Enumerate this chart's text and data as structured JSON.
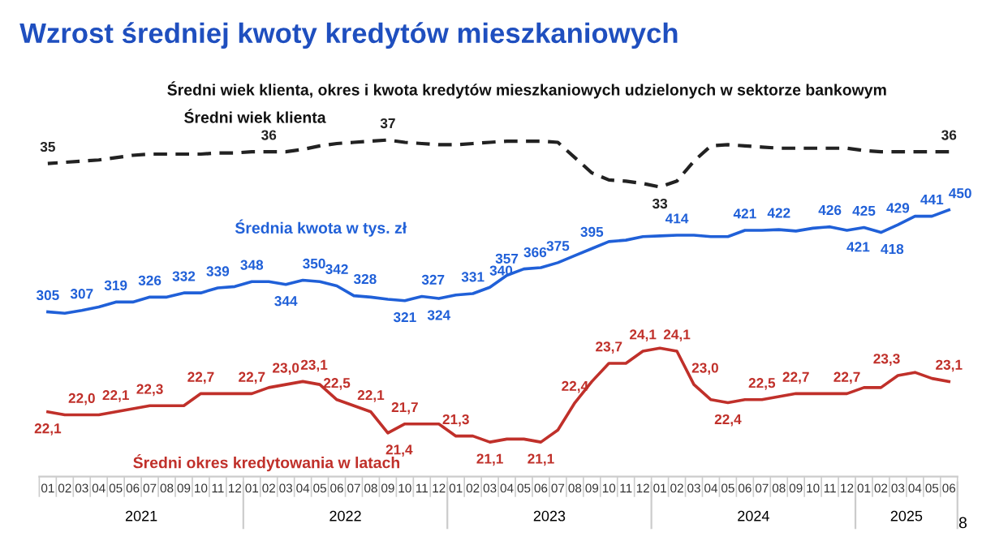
{
  "chart_data": [
    {
      "type": "line",
      "title": "Wzrost średniej kwoty kredytów mieszkaniowych",
      "subtitle": "Średni wiek klienta, okres i kwota kredytów mieszkaniowych udzielonych w sektorze bankowym",
      "categories": [
        "01",
        "02",
        "03",
        "04",
        "05",
        "06",
        "07",
        "08",
        "09",
        "10",
        "11",
        "12",
        "01",
        "02",
        "03",
        "04",
        "05",
        "06",
        "07",
        "08",
        "09",
        "10",
        "11",
        "12",
        "01",
        "02",
        "03",
        "04",
        "05",
        "06",
        "07",
        "08",
        "09",
        "10",
        "11",
        "12",
        "01",
        "02",
        "03",
        "04",
        "05",
        "06",
        "07",
        "08",
        "09",
        "10",
        "11",
        "12",
        "01",
        "02",
        "03",
        "04",
        "05",
        "06"
      ],
      "tick_labels": false,
      "grid": false,
      "legend": false,
      "marker": "none",
      "series": [
        {
          "name": "Średni wiek klienta",
          "color": "#222222",
          "line_style": "dashed",
          "values": [
            35,
            35.1,
            35.2,
            35.3,
            35.5,
            35.7,
            35.8,
            35.8,
            35.8,
            35.8,
            35.9,
            35.9,
            36,
            36,
            36,
            36.2,
            36.5,
            36.7,
            36.8,
            36.9,
            37,
            36.8,
            36.7,
            36.6,
            36.6,
            36.7,
            36.8,
            36.9,
            36.9,
            36.9,
            36.8,
            35.5,
            34.2,
            33.6,
            33.5,
            33.3,
            33,
            33.5,
            35.2,
            36.5,
            36.6,
            36.5,
            36.4,
            36.3,
            36.3,
            36.3,
            36.3,
            36.3,
            36.1,
            36,
            36,
            36,
            36,
            36
          ],
          "value_labels": [
            "35",
            null,
            null,
            null,
            null,
            null,
            null,
            null,
            null,
            null,
            null,
            null,
            null,
            "36",
            null,
            null,
            null,
            null,
            null,
            null,
            "37",
            null,
            null,
            null,
            null,
            null,
            null,
            null,
            null,
            null,
            null,
            null,
            null,
            null,
            null,
            null,
            "33",
            null,
            null,
            null,
            null,
            null,
            null,
            null,
            null,
            null,
            null,
            null,
            null,
            null,
            null,
            null,
            null,
            "36"
          ]
        }
      ]
    },
    {
      "type": "line",
      "categories": [
        "01",
        "02",
        "03",
        "04",
        "05",
        "06",
        "07",
        "08",
        "09",
        "10",
        "11",
        "12",
        "01",
        "02",
        "03",
        "04",
        "05",
        "06",
        "07",
        "08",
        "09",
        "10",
        "11",
        "12",
        "01",
        "02",
        "03",
        "04",
        "05",
        "06",
        "07",
        "08",
        "09",
        "10",
        "11",
        "12",
        "01",
        "02",
        "03",
        "04",
        "05",
        "06",
        "07",
        "08",
        "09",
        "10",
        "11",
        "12",
        "01",
        "02",
        "03",
        "04",
        "05",
        "06"
      ],
      "tick_labels": false,
      "grid": false,
      "legend": false,
      "marker": "none",
      "series": [
        {
          "name": "Średnia kwota w tys. zł",
          "color": "#2060d8",
          "line_style": "solid",
          "values": [
            305,
            303,
            307,
            312,
            319,
            319,
            326,
            326,
            332,
            332,
            339,
            341,
            348,
            348,
            344,
            350,
            348,
            342,
            328,
            326,
            323,
            321,
            327,
            324,
            329,
            331,
            340,
            357,
            366,
            368,
            375,
            385,
            395,
            405,
            407,
            412,
            413,
            414,
            414,
            412,
            412,
            421,
            421,
            422,
            420,
            424,
            426,
            421,
            425,
            418,
            429,
            441,
            441,
            450
          ],
          "value_labels": [
            "305",
            null,
            "307",
            null,
            "319",
            null,
            "326",
            null,
            "332",
            null,
            "339",
            null,
            "348",
            null,
            "344",
            "350",
            null,
            "342",
            "328",
            null,
            null,
            "321",
            "327",
            "324",
            null,
            "331",
            "340",
            "357",
            "366",
            null,
            "375",
            null,
            "395",
            null,
            null,
            null,
            null,
            "414",
            null,
            null,
            null,
            "421",
            null,
            "422",
            null,
            null,
            "426",
            "421",
            "425",
            "418",
            "429",
            null,
            "441",
            "450"
          ]
        }
      ]
    },
    {
      "type": "line",
      "categories": [
        "01",
        "02",
        "03",
        "04",
        "05",
        "06",
        "07",
        "08",
        "09",
        "10",
        "11",
        "12",
        "01",
        "02",
        "03",
        "04",
        "05",
        "06",
        "07",
        "08",
        "09",
        "10",
        "11",
        "12",
        "01",
        "02",
        "03",
        "04",
        "05",
        "06",
        "07",
        "08",
        "09",
        "10",
        "11",
        "12",
        "01",
        "02",
        "03",
        "04",
        "05",
        "06",
        "07",
        "08",
        "09",
        "10",
        "11",
        "12",
        "01",
        "02",
        "03",
        "04",
        "05",
        "06"
      ],
      "annotations": [
        "2021",
        "2022",
        "2023",
        "2024",
        "2025",
        "8"
      ],
      "grid": false,
      "legend": false,
      "marker": "none",
      "series": [
        {
          "name": "Średni okres kredytowania w latach",
          "color": "#c0302a",
          "line_style": "solid",
          "values": [
            22.1,
            22.0,
            22.0,
            22.0,
            22.1,
            22.2,
            22.3,
            22.3,
            22.3,
            22.7,
            22.7,
            22.7,
            22.7,
            22.9,
            23.0,
            23.1,
            23.0,
            22.5,
            22.3,
            22.1,
            21.4,
            21.7,
            21.7,
            21.7,
            21.3,
            21.3,
            21.1,
            21.2,
            21.2,
            21.1,
            21.5,
            22.4,
            23.1,
            23.7,
            23.7,
            24.1,
            24.2,
            24.1,
            23.0,
            22.5,
            22.4,
            22.5,
            22.5,
            22.6,
            22.7,
            22.7,
            22.7,
            22.7,
            22.9,
            22.9,
            23.3,
            23.4,
            23.2,
            23.1
          ],
          "value_labels": [
            "22,1",
            null,
            "22,0",
            null,
            "22,1",
            null,
            "22,3",
            null,
            null,
            "22,7",
            null,
            null,
            "22,7",
            null,
            "23,0",
            "23,1",
            null,
            "22,5",
            null,
            "22,1",
            "21,4",
            "21,7",
            null,
            null,
            "21,3",
            null,
            "21,1",
            null,
            null,
            "21,1",
            null,
            "22,4",
            null,
            "23,7",
            null,
            "24,1",
            null,
            "24,1",
            "23,0",
            null,
            "22,4",
            null,
            "22,5",
            null,
            "22,7",
            null,
            null,
            "22,7",
            null,
            null,
            "23,3",
            null,
            null,
            "23,1"
          ]
        }
      ]
    }
  ]
}
